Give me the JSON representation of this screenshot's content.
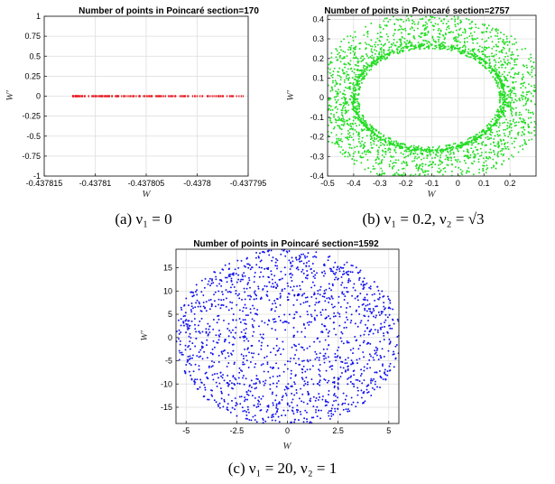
{
  "chart_data": [
    {
      "type": "scatter",
      "title": "Number of points in Poincaré section=170",
      "xlabel": "W",
      "ylabel": "W'",
      "caption": "(a) ν₁ = 0",
      "xlim": [
        -0.437815,
        -0.437795
      ],
      "ylim": [
        -1,
        1
      ],
      "xticks": [
        -0.437815,
        -0.43781,
        -0.437805,
        -0.4378,
        -0.437795
      ],
      "xticklabels": [
        "-0.437815",
        "-0.43781",
        "-0.437805",
        "-0.4378",
        "-0.437795"
      ],
      "yticks": [
        -1,
        -0.75,
        -0.5,
        -0.25,
        0,
        0.25,
        0.5,
        0.75,
        1
      ],
      "yticklabels": [
        "-1",
        "-0.75",
        "-0.5",
        "-0.25",
        "0",
        "0.25",
        "0.5",
        "0.75",
        "1"
      ],
      "grid": true,
      "color": "#e8141c",
      "points_shown": 170,
      "series": [
        {
          "description": "points along W' = 0, dense near W = -0.437812",
          "y": 0,
          "x_range": [
            -0.4378122,
            -0.4377955
          ]
        }
      ]
    },
    {
      "type": "scatter",
      "title": "Number of points in Poincaré section=2757",
      "xlabel": "W",
      "ylabel": "W'",
      "caption": "(b) ν₁ = 0.2, ν₂ = √3",
      "xlim": [
        -0.5,
        0.3
      ],
      "ylim": [
        -0.4,
        0.42
      ],
      "xticks": [
        -0.5,
        -0.4,
        -0.3,
        -0.2,
        -0.1,
        0,
        0.1,
        0.2
      ],
      "xticklabels": [
        "-0.5",
        "-0.4",
        "-0.3",
        "-0.2",
        "-0.1",
        "0",
        "0.1",
        "0.2"
      ],
      "yticks": [
        -0.4,
        -0.3,
        -0.2,
        -0.1,
        0,
        0.1,
        0.2,
        0.3,
        0.4
      ],
      "yticklabels": [
        "-0.4",
        "-0.3",
        "-0.2",
        "-0.1",
        "0",
        "0.1",
        "0.2",
        "0.3",
        "0.4"
      ],
      "grid": true,
      "color": "#22dd22",
      "points_shown": 2757,
      "ring": {
        "center": [
          -0.11,
          0.0
        ],
        "inner_radii": [
          0.27,
          0.25
        ],
        "outer_radii": [
          0.45,
          0.44
        ]
      }
    },
    {
      "type": "scatter",
      "title": "Number of points in Poincaré section=1592",
      "xlabel": "W",
      "ylabel": "W'",
      "caption": "(c) ν₁ = 20, ν₂ = 1",
      "xlim": [
        -5.5,
        5.5
      ],
      "ylim": [
        -18.5,
        19
      ],
      "xticks": [
        -5,
        -2.5,
        0,
        2.5,
        5
      ],
      "xticklabels": [
        "-5",
        "-2.5",
        "0",
        "2.5",
        "5"
      ],
      "yticks": [
        -15,
        -10,
        -5,
        0,
        5,
        10,
        15
      ],
      "yticklabels": [
        "-15",
        "-10",
        "-5",
        "0",
        "5",
        "10",
        "15"
      ],
      "grid": true,
      "color": "#1010ee",
      "points_shown": 1592,
      "region": {
        "center": [
          0,
          0
        ],
        "radii": [
          5.6,
          19
        ]
      }
    }
  ]
}
